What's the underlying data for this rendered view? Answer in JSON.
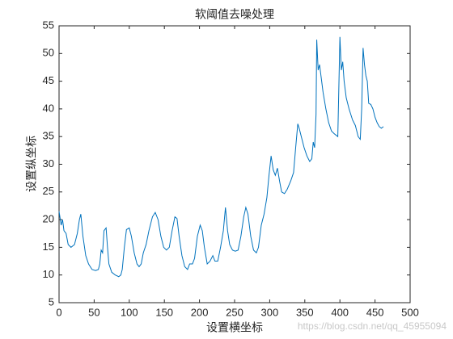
{
  "chart_data": {
    "type": "line",
    "title": "软阈值去噪处理",
    "x_label": "设置横坐标",
    "y_label": "设置纵坐标",
    "watermark": "https://blog.csdn.net/qq_45955094",
    "xlim": [
      0,
      500
    ],
    "xticks": [
      0,
      50,
      100,
      150,
      200,
      250,
      300,
      350,
      400,
      450,
      500
    ],
    "ylim": [
      5,
      55
    ],
    "yticks": [
      5,
      10,
      15,
      20,
      25,
      30,
      35,
      40,
      45,
      50,
      55
    ],
    "grid": false,
    "series": [
      {
        "color": "#0072bd",
        "x": [
          0,
          3,
          5,
          7,
          10,
          13,
          17,
          22,
          26,
          29,
          31,
          34,
          38,
          42,
          47,
          52,
          56,
          58,
          60,
          62,
          64,
          67,
          69,
          71,
          75,
          80,
          85,
          88,
          90,
          93,
          96,
          100,
          103,
          107,
          111,
          114,
          117,
          120,
          124,
          128,
          133,
          137,
          141,
          145,
          149,
          153,
          157,
          161,
          165,
          168,
          171,
          175,
          179,
          183,
          186,
          190,
          193,
          197,
          201,
          204,
          207,
          211,
          215,
          219,
          222,
          226,
          230,
          234,
          237,
          240,
          243,
          247,
          251,
          255,
          259,
          263,
          266,
          269,
          273,
          277,
          281,
          284,
          288,
          292,
          296,
          299,
          302,
          305,
          308,
          311,
          314,
          317,
          321,
          325,
          330,
          334,
          337,
          340,
          342,
          345,
          349,
          353,
          357,
          360,
          362,
          364,
          366,
          367,
          369,
          371,
          373,
          376,
          380,
          384,
          388,
          392,
          395,
          397,
          398,
          400,
          402,
          404,
          406,
          409,
          413,
          418,
          422,
          426,
          429,
          431,
          433,
          435,
          437,
          439,
          441,
          444,
          447,
          450,
          453,
          456,
          459,
          462
        ],
        "values": [
          21.5,
          19,
          20,
          18,
          17.5,
          15.5,
          15,
          15.5,
          17.5,
          20,
          21,
          17,
          13.5,
          12,
          11,
          10.8,
          11,
          12,
          14.5,
          14,
          18,
          18.5,
          15,
          12,
          10.5,
          10,
          9.7,
          10,
          11,
          15,
          18.2,
          18.5,
          17,
          14,
          12,
          11.5,
          12,
          14,
          15.5,
          18,
          20.5,
          21.3,
          20,
          17,
          15,
          14.5,
          15,
          18,
          20.5,
          20.2,
          17,
          13.5,
          11.5,
          11,
          12,
          12,
          13,
          17,
          19,
          18,
          15,
          12,
          12.5,
          13.5,
          12.5,
          12.5,
          15,
          18,
          22.2,
          18,
          15.5,
          14.5,
          14.3,
          14.5,
          17,
          20.5,
          22.2,
          21,
          17,
          14.5,
          14,
          15,
          19,
          21,
          24,
          28,
          31.5,
          29,
          28,
          29.3,
          27,
          25,
          24.7,
          25.5,
          27,
          28.5,
          33,
          37.3,
          36.5,
          35,
          33,
          31.5,
          30.5,
          31,
          34,
          33,
          39,
          52.5,
          47,
          48,
          46,
          43,
          40,
          37.5,
          36,
          35.5,
          35.2,
          35,
          41,
          53,
          47,
          48.5,
          45,
          42,
          40,
          38,
          37,
          35,
          34.5,
          40,
          51,
          48,
          46,
          45,
          41,
          40.8,
          40,
          38.5,
          37.5,
          36.8,
          36.5,
          36.8
        ]
      }
    ]
  }
}
